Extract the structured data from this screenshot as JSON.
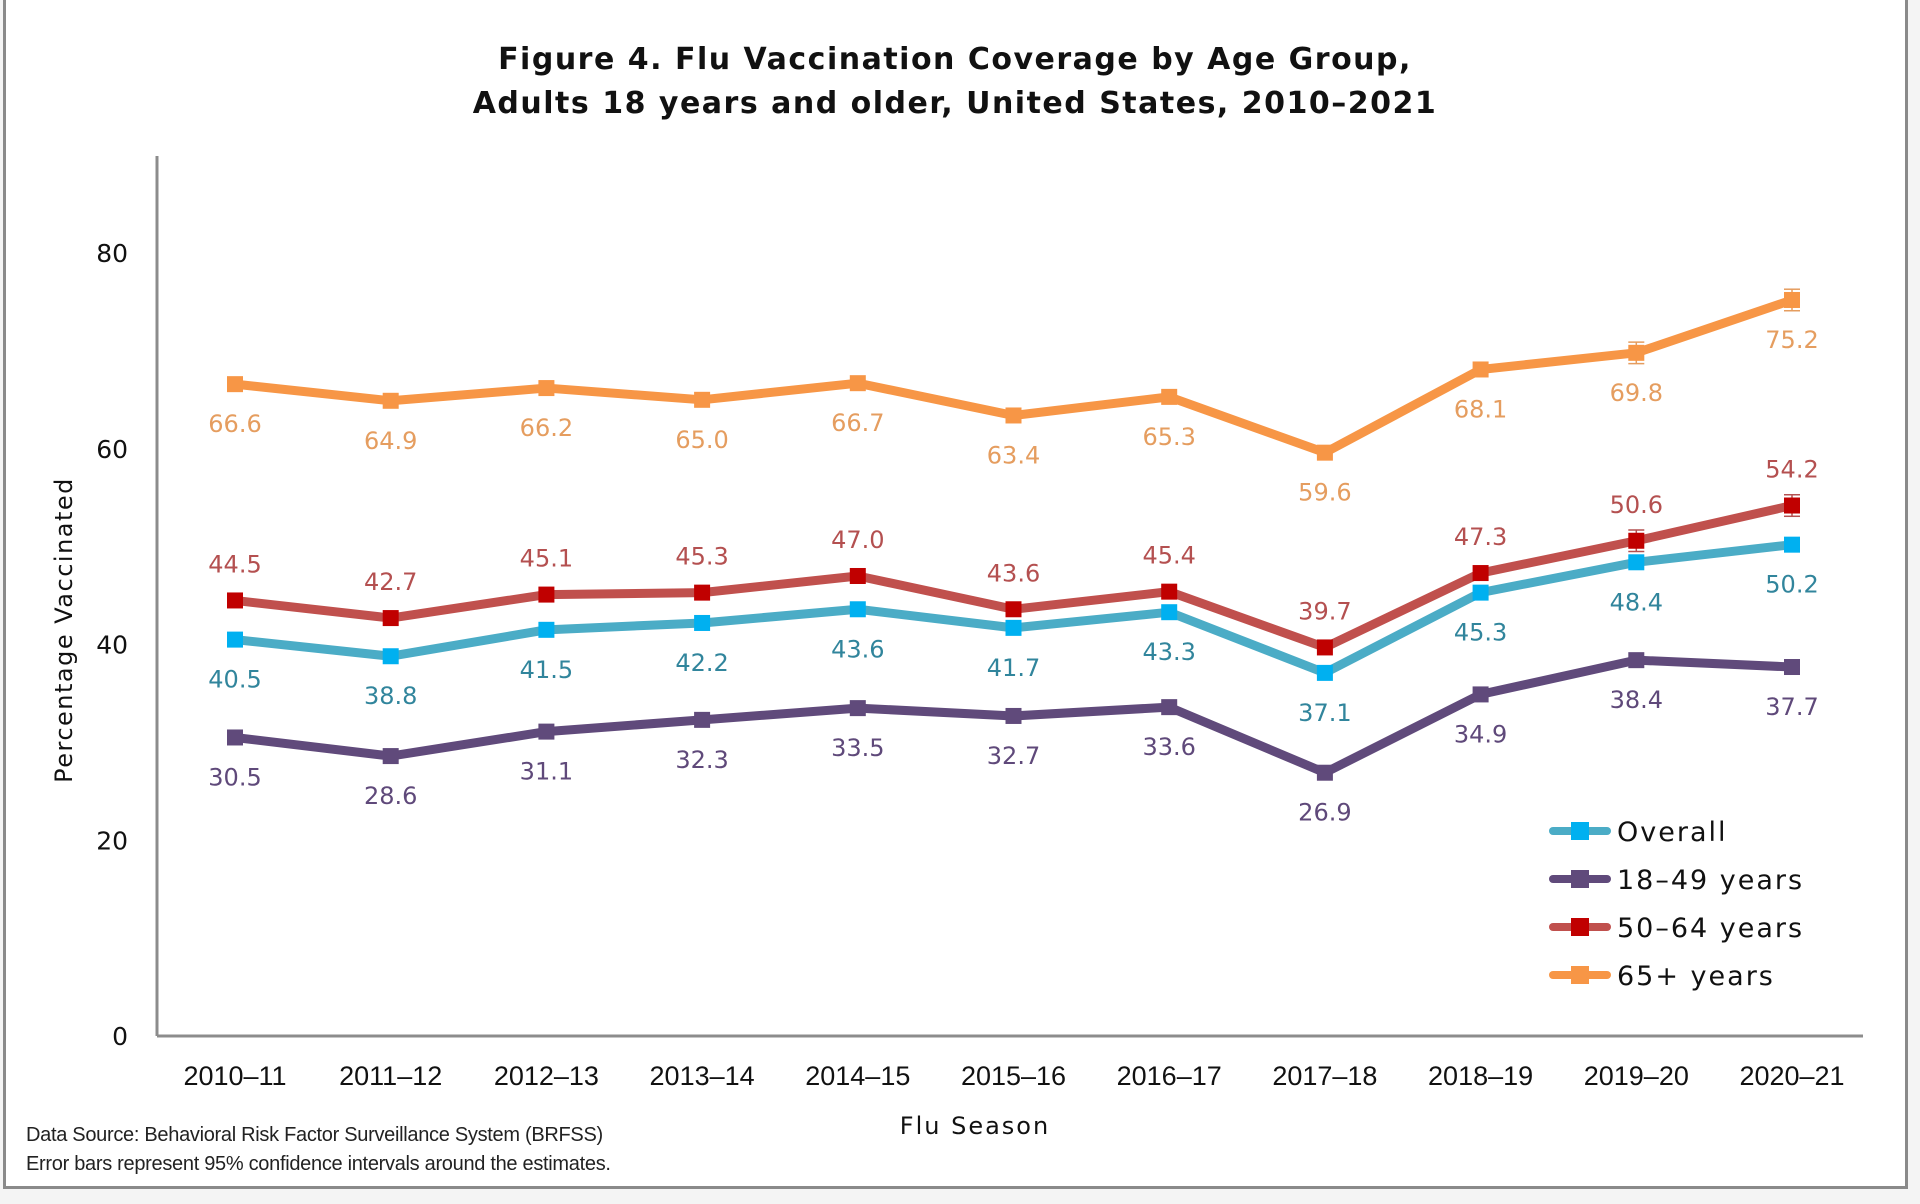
{
  "chart_data": {
    "type": "line",
    "title": "Figure 4. Flu Vaccination Coverage by Age Group,",
    "subtitle": "Adults 18 years and older, United States, 2010–2021",
    "xlabel": "Flu Season",
    "ylabel": "Percentage Vaccinated",
    "ylim": [
      0,
      90
    ],
    "yticks": [
      0,
      20,
      40,
      60,
      80
    ],
    "grid": false,
    "legend_position": "bottom-right",
    "categories": [
      "2010–11",
      "2011–12",
      "2012–13",
      "2013–14",
      "2014–15",
      "2015–16",
      "2016–17",
      "2017–18",
      "2018–19",
      "2019–20",
      "2020–21"
    ],
    "series": [
      {
        "name": "Overall",
        "line_color": "#4bacc6",
        "marker_color": "#00b0f0",
        "label_color": "#31859c",
        "label_side": "below",
        "values": [
          40.5,
          38.8,
          41.5,
          42.2,
          43.6,
          41.7,
          43.3,
          37.1,
          45.3,
          48.4,
          50.2
        ],
        "labels": [
          "40.5",
          "38.8",
          "41.5",
          "42.2",
          "43.6",
          "41.7",
          "43.3",
          "37.1",
          "45.3",
          "48.4",
          "50.2"
        ]
      },
      {
        "name": "18–49 years",
        "line_color": "#604a7b",
        "marker_color": "#604a7b",
        "label_color": "#5f497a",
        "label_side": "below",
        "values": [
          30.5,
          28.6,
          31.1,
          32.3,
          33.5,
          32.7,
          33.6,
          26.9,
          34.9,
          38.4,
          37.7
        ],
        "labels": [
          "30.5",
          "28.6",
          "31.1",
          "32.3",
          "33.5",
          "32.7",
          "33.6",
          "26.9",
          "34.9",
          "38.4",
          "37.7"
        ]
      },
      {
        "name": "50–64 years",
        "line_color": "#c0504d",
        "marker_color": "#c00000",
        "label_color": "#b45050",
        "label_side": "above",
        "values": [
          44.5,
          42.7,
          45.1,
          45.3,
          47.0,
          43.6,
          45.4,
          39.7,
          47.3,
          50.6,
          54.2
        ],
        "labels": [
          "44.5",
          "42.7",
          "45.1",
          "45.3",
          "47.0",
          "43.6",
          "45.4",
          "39.7",
          "47.3",
          "50.6",
          "54.2"
        ],
        "error_bars_visible_on": [
          "2019–20",
          "2020–21"
        ]
      },
      {
        "name": "65+ years",
        "line_color": "#f79646",
        "marker_color": "#f79646",
        "label_color": "#e59d5f",
        "label_side": "below",
        "values": [
          66.6,
          64.9,
          66.2,
          65.0,
          66.7,
          63.4,
          65.3,
          59.6,
          68.1,
          69.8,
          75.2
        ],
        "labels": [
          "66.6",
          "64.9",
          "66.2",
          "65.0",
          "66.7",
          "63.4",
          "65.3",
          "59.6",
          "68.1",
          "69.8",
          "75.2"
        ],
        "error_bars_visible_on": [
          "2019–20",
          "2020–21"
        ]
      }
    ],
    "footnotes": [
      "Data Source: Behavioral Risk Factor Surveillance System (BRFSS)",
      "Error bars represent 95% confidence  intervals  around  the  estimates."
    ]
  }
}
